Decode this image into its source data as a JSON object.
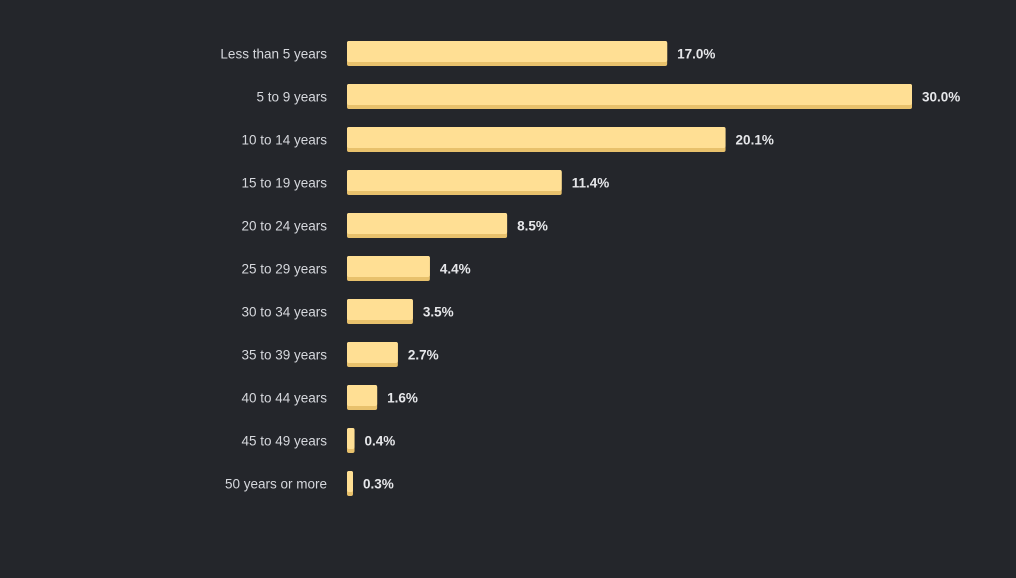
{
  "chart_data": {
    "type": "bar",
    "orientation": "horizontal",
    "categories": [
      "Less than 5 years",
      "5 to 9 years",
      "10 to 14 years",
      "15 to 19 years",
      "20 to 24 years",
      "25 to 29 years",
      "30 to 34 years",
      "35 to 39 years",
      "40 to 44 years",
      "45 to 49 years",
      "50 years or more"
    ],
    "values": [
      17.0,
      30.0,
      20.1,
      11.4,
      8.5,
      4.4,
      3.5,
      2.7,
      1.6,
      0.4,
      0.3
    ],
    "value_labels": [
      "17.0%",
      "30.0%",
      "20.1%",
      "11.4%",
      "8.5%",
      "4.4%",
      "3.5%",
      "2.7%",
      "1.6%",
      "0.4%",
      "0.3%"
    ],
    "title": "",
    "xlabel": "",
    "ylabel": "",
    "xlim": [
      0,
      30
    ],
    "grid": false,
    "legend": "none",
    "colors": {
      "background": "#24262b",
      "bar": "#ffdf94",
      "bar_shadow": "#e8c16c",
      "category_text": "#d6d8dd",
      "value_text": "#e6e7ea"
    }
  }
}
